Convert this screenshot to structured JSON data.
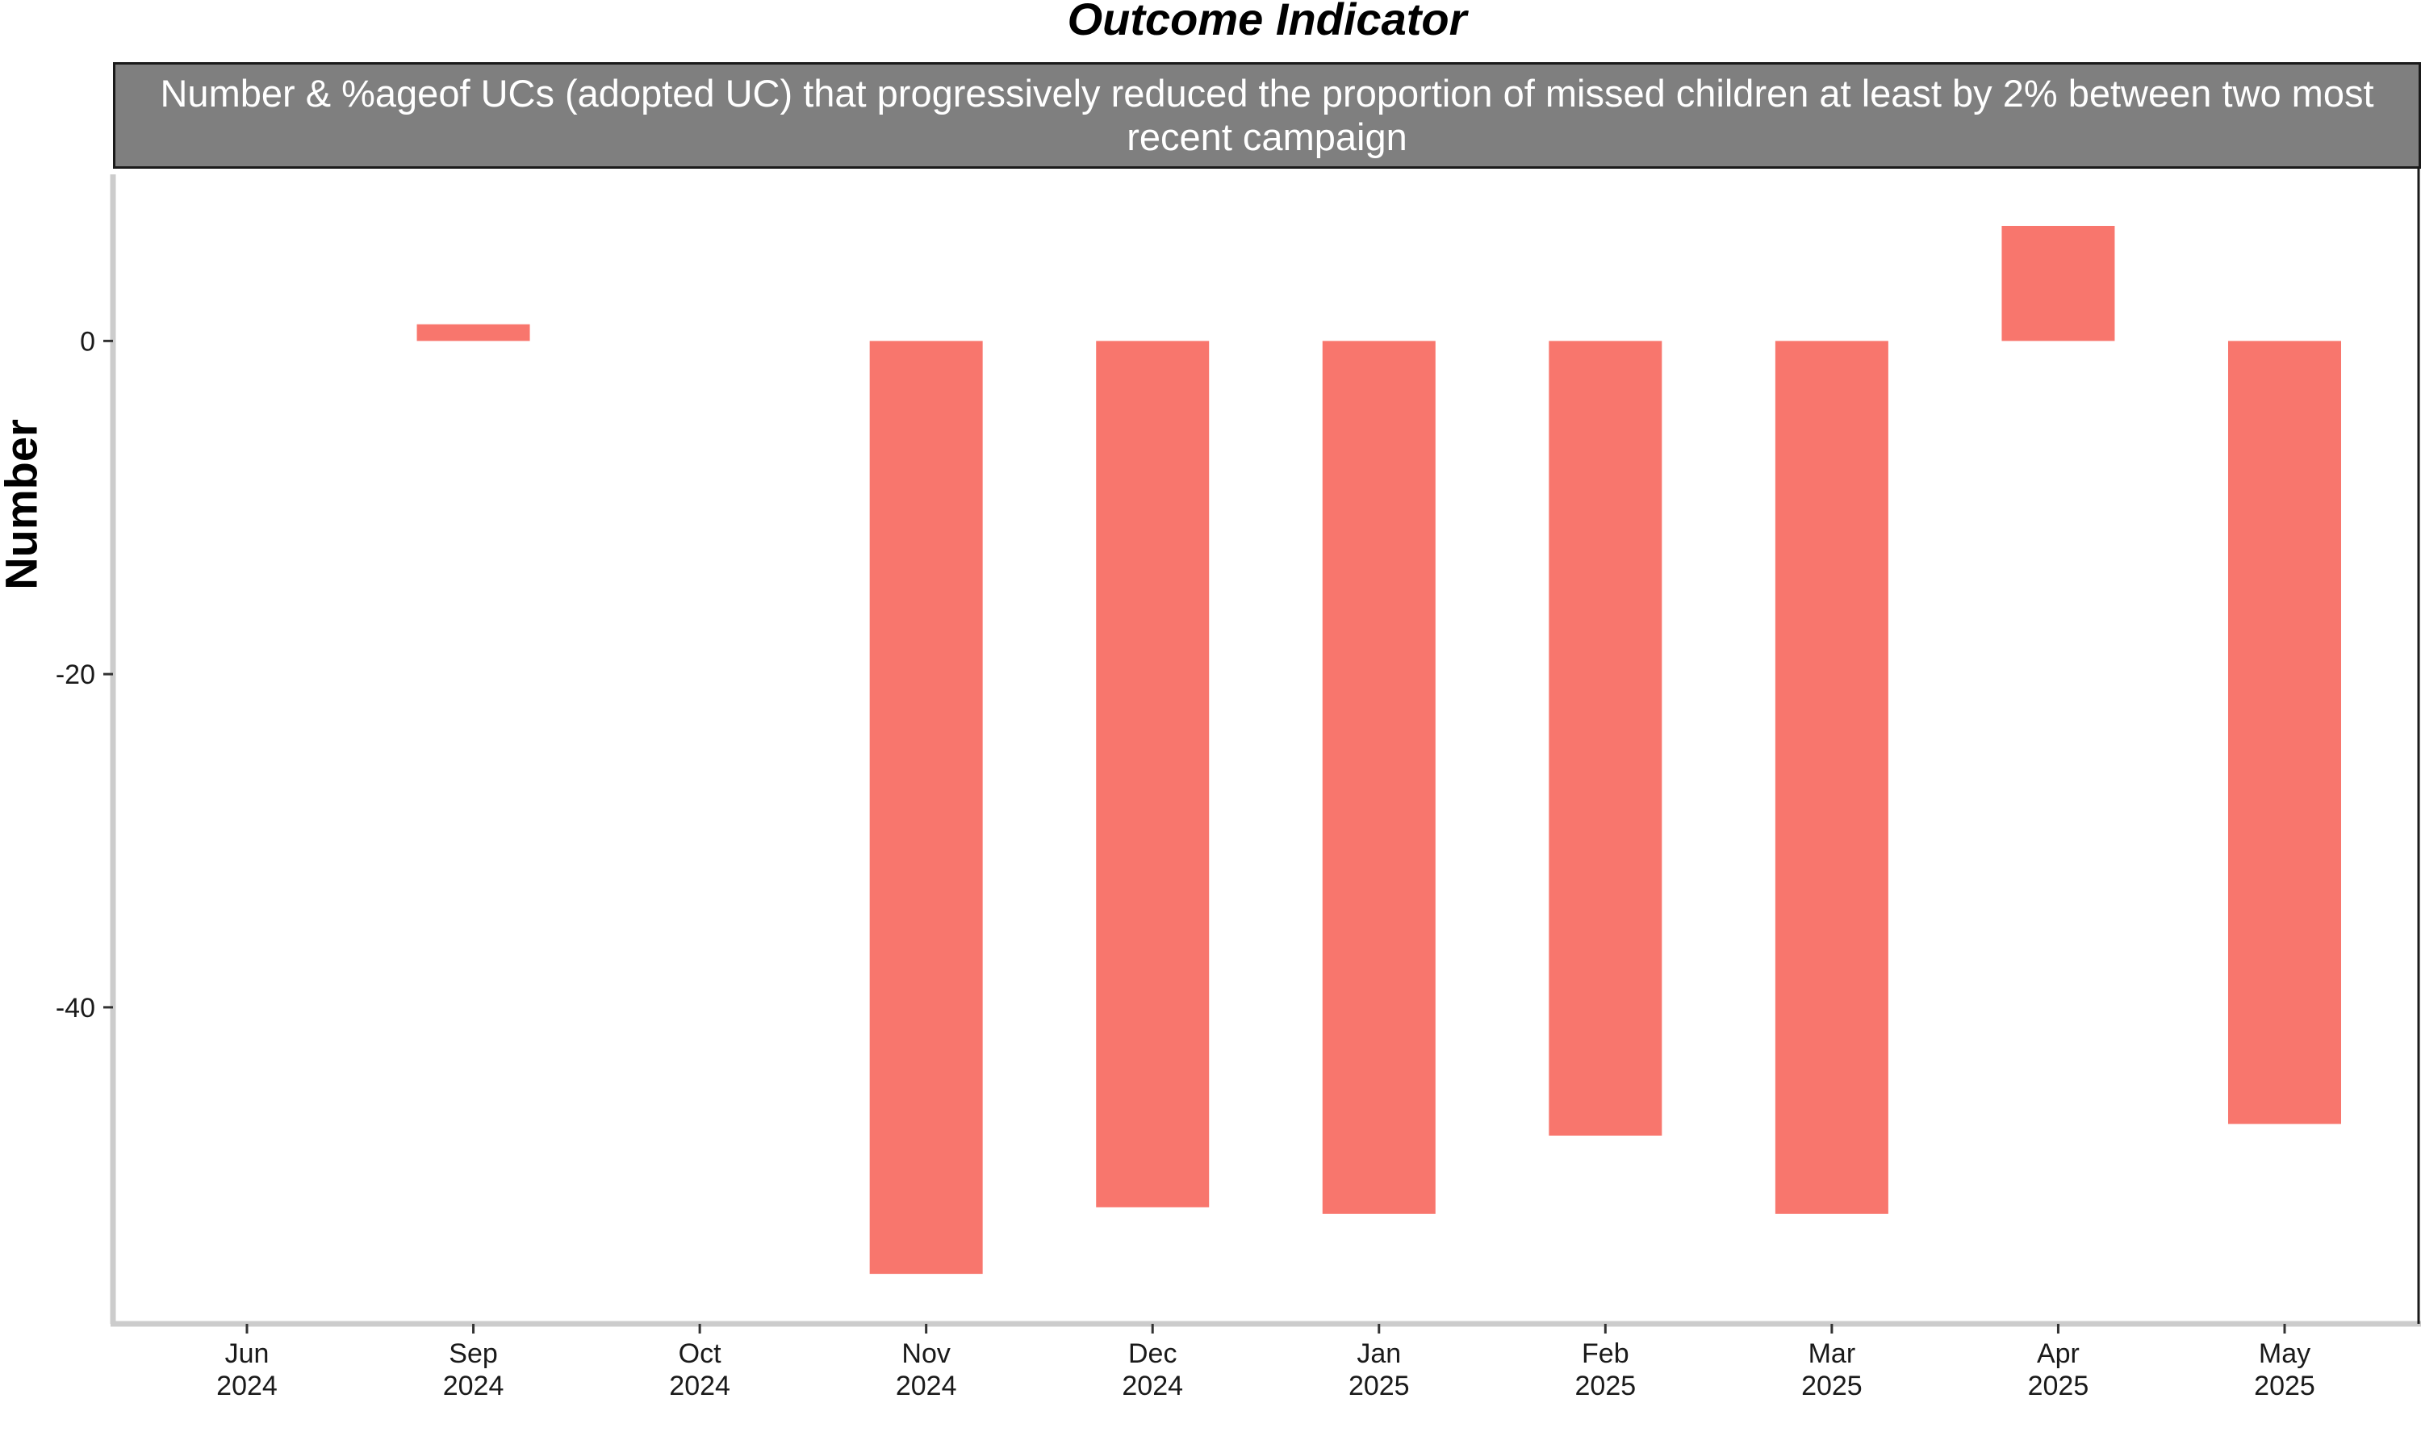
{
  "chart_data": {
    "type": "bar",
    "title": "Outcome Indicator",
    "subtitle": "Number & %ageof UCs (adopted UC) that progressively reduced the proportion of missed children at least by 2% between two most recent campaign",
    "xlabel": "",
    "ylabel": "Number",
    "categories": [
      {
        "month": "Jun",
        "year": "2024"
      },
      {
        "month": "Sep",
        "year": "2024"
      },
      {
        "month": "Oct",
        "year": "2024"
      },
      {
        "month": "Nov",
        "year": "2024"
      },
      {
        "month": "Dec",
        "year": "2024"
      },
      {
        "month": "Jan",
        "year": "2025"
      },
      {
        "month": "Feb",
        "year": "2025"
      },
      {
        "month": "Mar",
        "year": "2025"
      },
      {
        "month": "Apr",
        "year": "2025"
      },
      {
        "month": "May",
        "year": "2025"
      }
    ],
    "values": [
      0,
      1,
      0,
      -56,
      -52,
      -52.4,
      -47.7,
      -52.4,
      6.9,
      -47
    ],
    "ylim": [
      -59,
      10
    ],
    "yticks": [
      0,
      -20,
      -40
    ],
    "bar_color": "#f8766d",
    "grid": false,
    "legend": "none"
  }
}
